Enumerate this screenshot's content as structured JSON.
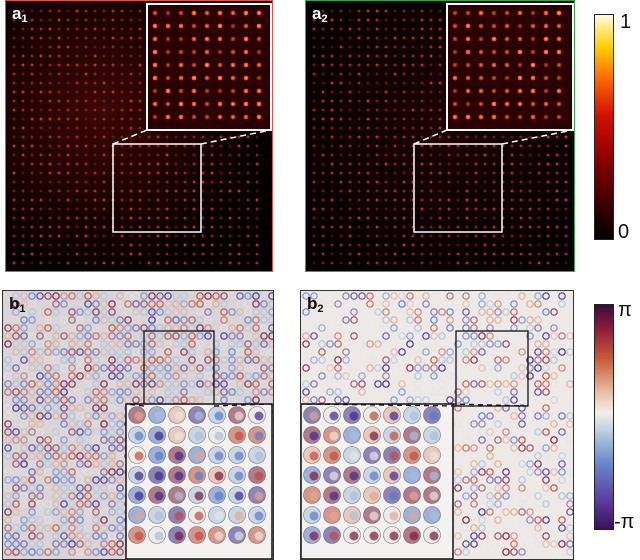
{
  "panels": {
    "a1": {
      "letter": "a",
      "sub": "1",
      "border": "#d9534f"
    },
    "a2": {
      "letter": "a",
      "sub": "2",
      "border": "#3aa04a"
    },
    "b1": {
      "letter": "b",
      "sub": "1",
      "border": "#333333"
    },
    "b2": {
      "letter": "b",
      "sub": "2",
      "border": "#333333"
    }
  },
  "colorbars": {
    "intensity": {
      "max_label": "1",
      "min_label": "0"
    },
    "phase": {
      "max_label": "π",
      "min_label": "-π"
    }
  }
}
